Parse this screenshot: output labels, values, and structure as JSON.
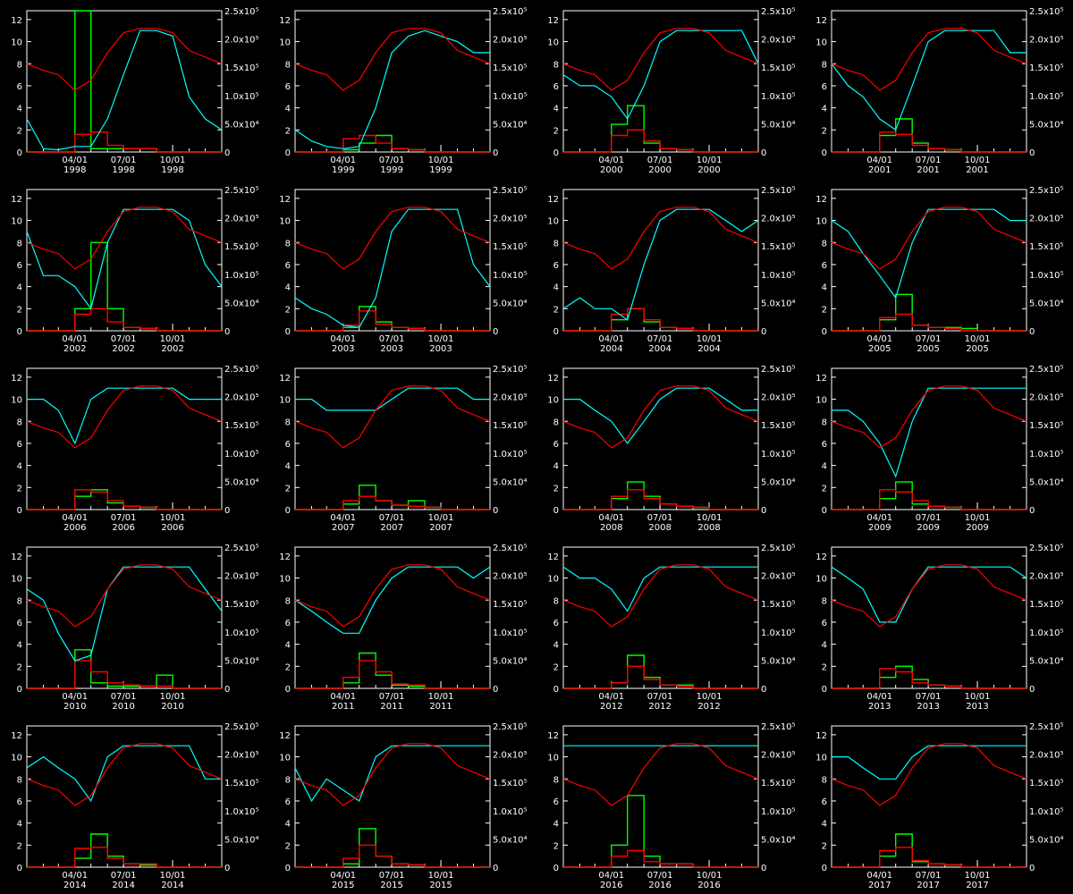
{
  "chart_data": {
    "type": "line",
    "layout": "grid 5 rows x 4 columns",
    "left_axis": {
      "ylim": [
        0,
        12.8
      ],
      "ticks": [
        "0",
        "2",
        "4",
        "6",
        "8",
        "10",
        "12"
      ]
    },
    "right_axis": {
      "ylim": [
        0,
        250000
      ],
      "ticks": [
        "0",
        "5.0x10⁴",
        "1.0x10⁵",
        "1.5x10⁵",
        "2.0x10⁵",
        "2.5x10⁵"
      ]
    },
    "x_ticks": [
      "04/01",
      "07/01",
      "10/01"
    ],
    "x_sampling": "monthly, Jan 1 to Jan 1 (lines); monthly bins Jan-Dec (steps)",
    "colors": {
      "red": "#ff0000",
      "cyan": "#00ffff",
      "green": "#00ff00",
      "axes": "#ffffff",
      "background": "#000000"
    },
    "red_line": [
      8,
      7.4,
      7.0,
      5.6,
      6.5,
      9.0,
      10.8,
      11.2,
      11.2,
      10.8,
      9.2,
      8.6,
      8.0
    ],
    "panels": [
      {
        "year": "1998",
        "cyan": [
          3,
          0.3,
          0.2,
          0.5,
          0.5,
          3,
          7,
          11,
          11,
          10.5,
          5,
          3,
          2
        ],
        "green": [
          0,
          0,
          0,
          12.8,
          0.3,
          0.3,
          0.3,
          0.3,
          0,
          0,
          0,
          0
        ],
        "red": [
          0,
          0,
          0,
          1.6,
          1.8,
          0.6,
          0.3,
          0.3,
          0,
          0,
          0,
          0
        ]
      },
      {
        "year": "1999",
        "cyan": [
          2,
          1,
          0.5,
          0.3,
          0.5,
          4,
          9,
          10.5,
          11,
          10.5,
          10,
          9,
          9
        ],
        "green": [
          0,
          0,
          0,
          0.2,
          0.8,
          1.5,
          0.3,
          0.2,
          0,
          0,
          0,
          0
        ],
        "red": [
          0,
          0,
          0,
          1.2,
          1.5,
          0.8,
          0.3,
          0.2,
          0,
          0,
          0,
          0
        ]
      },
      {
        "year": "2000",
        "cyan": [
          7,
          6,
          6,
          5,
          3,
          6,
          10,
          11,
          11,
          11,
          11,
          11,
          8
        ],
        "green": [
          0,
          0,
          0,
          2.5,
          4.2,
          0.8,
          0.3,
          0.2,
          0,
          0,
          0,
          0
        ],
        "red": [
          0,
          0,
          0,
          1.5,
          2.0,
          1.0,
          0.3,
          0.2,
          0,
          0,
          0,
          0
        ]
      },
      {
        "year": "2001",
        "cyan": [
          8,
          6,
          5,
          3,
          2,
          6,
          10,
          11,
          11,
          11,
          11,
          9,
          9
        ],
        "green": [
          0,
          0,
          0,
          1.5,
          3.0,
          0.8,
          0.3,
          0.2,
          0,
          0,
          0,
          0
        ],
        "red": [
          0,
          0,
          0,
          1.8,
          1.6,
          0.6,
          0.3,
          0.2,
          0,
          0,
          0,
          0
        ]
      },
      {
        "year": "2002",
        "cyan": [
          9,
          5,
          5,
          4,
          2,
          8,
          11,
          11,
          11,
          11,
          10,
          6,
          4
        ],
        "green": [
          0,
          0,
          0,
          2.0,
          8.0,
          2.0,
          0.3,
          0.2,
          0,
          0,
          0,
          0
        ],
        "red": [
          0,
          0,
          0,
          1.5,
          2.0,
          0.8,
          0.3,
          0.2,
          0,
          0,
          0,
          0
        ]
      },
      {
        "year": "2003",
        "cyan": [
          3,
          2,
          1.5,
          0.5,
          0.3,
          3,
          9,
          11,
          11,
          11,
          11,
          6,
          4
        ],
        "green": [
          0,
          0,
          0,
          0.3,
          2.2,
          0.8,
          0.3,
          0.2,
          0,
          0,
          0,
          0
        ],
        "red": [
          0,
          0,
          0,
          0.5,
          1.8,
          0.6,
          0.3,
          0.2,
          0,
          0,
          0,
          0
        ]
      },
      {
        "year": "2004",
        "cyan": [
          2,
          3,
          2,
          2,
          1,
          6,
          10,
          11,
          11,
          11,
          10,
          9,
          10
        ],
        "green": [
          0,
          0,
          0,
          1.0,
          2.0,
          0.8,
          0.3,
          0.2,
          0,
          0,
          0,
          0
        ],
        "red": [
          0,
          0,
          0,
          1.5,
          2.0,
          1.0,
          0.3,
          0.2,
          0,
          0,
          0,
          0
        ]
      },
      {
        "year": "2005",
        "cyan": [
          10,
          9,
          7,
          5,
          3,
          8,
          11,
          11,
          11,
          11,
          11,
          10,
          10
        ],
        "green": [
          0,
          0,
          0,
          1.0,
          3.3,
          0.5,
          0.3,
          0.3,
          0.2,
          0,
          0,
          0
        ],
        "red": [
          0,
          0,
          0,
          1.2,
          1.5,
          0.5,
          0.3,
          0.2,
          0,
          0,
          0,
          0
        ]
      },
      {
        "year": "2006",
        "cyan": [
          10,
          10,
          9,
          6,
          10,
          11,
          11,
          11,
          11,
          11,
          10,
          10,
          10
        ],
        "green": [
          0,
          0,
          0,
          1.2,
          1.8,
          0.6,
          0.3,
          0.2,
          0,
          0,
          0,
          0
        ],
        "red": [
          0,
          0,
          0,
          1.8,
          1.6,
          0.8,
          0.3,
          0.2,
          0,
          0,
          0,
          0
        ]
      },
      {
        "year": "2007",
        "cyan": [
          10,
          10,
          9,
          9,
          9,
          9,
          10,
          11,
          11,
          11,
          11,
          10,
          10
        ],
        "green": [
          0,
          0,
          0,
          0.5,
          2.2,
          0.8,
          0.4,
          0.8,
          0.2,
          0,
          0,
          0
        ],
        "red": [
          0,
          0,
          0,
          0.8,
          1.2,
          0.8,
          0.4,
          0.3,
          0.2,
          0,
          0,
          0
        ]
      },
      {
        "year": "2008",
        "cyan": [
          10,
          10,
          9,
          8,
          6,
          8,
          10,
          11,
          11,
          11,
          10,
          9,
          9
        ],
        "green": [
          0,
          0,
          0,
          1.0,
          2.5,
          1.2,
          0.5,
          0.3,
          0.2,
          0,
          0,
          0
        ],
        "red": [
          0,
          0,
          0,
          1.2,
          1.8,
          1.0,
          0.5,
          0.3,
          0.2,
          0,
          0,
          0
        ]
      },
      {
        "year": "2009",
        "cyan": [
          9,
          9,
          8,
          6,
          3,
          8,
          11,
          11,
          11,
          11,
          11,
          11,
          11
        ],
        "green": [
          0,
          0,
          0,
          1.0,
          2.5,
          0.5,
          0.3,
          0.2,
          0,
          0,
          0,
          0
        ],
        "red": [
          0,
          0,
          0,
          1.8,
          1.6,
          0.8,
          0.3,
          0.2,
          0,
          0,
          0,
          0
        ]
      },
      {
        "year": "2010",
        "cyan": [
          9,
          8,
          5,
          2.5,
          3,
          9,
          11,
          11,
          11,
          11,
          11,
          9,
          7
        ],
        "green": [
          0,
          0,
          0,
          3.5,
          0.5,
          0.2,
          0.2,
          0.2,
          1.2,
          0,
          0,
          0
        ],
        "red": [
          0,
          0,
          0,
          2.5,
          1.5,
          0.5,
          0.3,
          0.2,
          0.2,
          0,
          0,
          0
        ]
      },
      {
        "year": "2011",
        "cyan": [
          8,
          7,
          6,
          5,
          5,
          8,
          10,
          11,
          11,
          11,
          11,
          10,
          11
        ],
        "green": [
          0,
          0,
          0,
          0.5,
          3.2,
          1.2,
          0.3,
          0.2,
          0,
          0,
          0,
          0
        ],
        "red": [
          0,
          0,
          0,
          1.0,
          2.5,
          1.5,
          0.4,
          0.3,
          0,
          0,
          0,
          0
        ]
      },
      {
        "year": "2012",
        "cyan": [
          11,
          10,
          10,
          9,
          7,
          10,
          11,
          11,
          11,
          11,
          11,
          11,
          11
        ],
        "green": [
          0,
          0,
          0,
          0.5,
          3.0,
          1.0,
          0.3,
          0.3,
          0,
          0,
          0,
          0
        ],
        "red": [
          0,
          0,
          0,
          0.5,
          2.0,
          0.8,
          0.3,
          0.2,
          0,
          0,
          0,
          0
        ]
      },
      {
        "year": "2013",
        "cyan": [
          11,
          10,
          9,
          6,
          6,
          9,
          11,
          11,
          11,
          11,
          11,
          11,
          10
        ],
        "green": [
          0,
          0,
          0,
          1.0,
          2.0,
          0.8,
          0.3,
          0.2,
          0,
          0,
          0,
          0
        ],
        "red": [
          0,
          0,
          0,
          1.8,
          1.5,
          0.5,
          0.3,
          0.2,
          0,
          0,
          0,
          0
        ]
      },
      {
        "year": "2014",
        "cyan": [
          9,
          10,
          9,
          8,
          6,
          10,
          11,
          11,
          11,
          11,
          11,
          8,
          8
        ],
        "green": [
          0,
          0,
          0,
          0.8,
          3.0,
          1.0,
          0.3,
          0.2,
          0,
          0,
          0,
          0
        ],
        "red": [
          0,
          0,
          0,
          1.7,
          1.8,
          0.8,
          0.3,
          0.3,
          0,
          0,
          0,
          0
        ]
      },
      {
        "year": "2015",
        "cyan": [
          9,
          6,
          8,
          7,
          6,
          10,
          11,
          11,
          11,
          11,
          11,
          11,
          11
        ],
        "green": [
          0,
          0,
          0,
          0.3,
          3.5,
          1.0,
          0.3,
          0.2,
          0,
          0,
          0,
          0
        ],
        "red": [
          0,
          0,
          0,
          0.8,
          2.0,
          1.0,
          0.3,
          0.2,
          0,
          0,
          0,
          0
        ]
      },
      {
        "year": "2016",
        "cyan": [
          11,
          11,
          11,
          11,
          11,
          11,
          11,
          11,
          11,
          11,
          11,
          11,
          11
        ],
        "green": [
          0,
          0,
          0,
          2.0,
          6.5,
          1.0,
          0.3,
          0.3,
          0,
          0,
          0,
          0
        ],
        "red": [
          0,
          0,
          0,
          1.0,
          1.5,
          0.5,
          0.3,
          0.3,
          0,
          0,
          0,
          0
        ]
      },
      {
        "year": "2017",
        "cyan": [
          10,
          10,
          9,
          8,
          8,
          10,
          11,
          11,
          11,
          11,
          11,
          11,
          11
        ],
        "green": [
          0,
          0,
          0,
          1.0,
          3.0,
          0.5,
          0.3,
          0.2,
          0,
          0,
          0,
          0
        ],
        "red": [
          0,
          0,
          0,
          1.5,
          1.8,
          0.6,
          0.3,
          0.2,
          0,
          0,
          0,
          0
        ]
      }
    ]
  }
}
